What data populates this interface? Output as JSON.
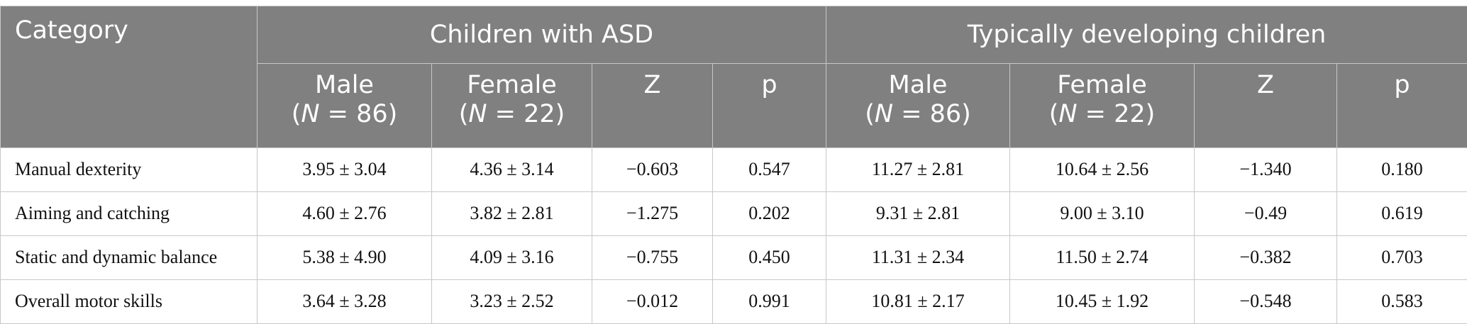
{
  "table": {
    "header": {
      "category": "Category",
      "group_asd": "Children with ASD",
      "group_td": "Typically developing children",
      "sub": [
        {
          "label": "Male",
          "n_prefix": "(",
          "n_var": "N",
          "n_suffix": " = 86)"
        },
        {
          "label": "Female",
          "n_prefix": "(",
          "n_var": "N",
          "n_suffix": " = 22)"
        },
        {
          "label": "Z"
        },
        {
          "label": "p"
        },
        {
          "label": "Male",
          "n_prefix": "(",
          "n_var": "N",
          "n_suffix": " = 86)"
        },
        {
          "label": "Female",
          "n_prefix": "(",
          "n_var": "N",
          "n_suffix": " = 22)"
        },
        {
          "label": "Z"
        },
        {
          "label": "p"
        }
      ]
    },
    "rows": [
      {
        "cells": [
          "Manual dexterity",
          "3.95 ± 3.04",
          "4.36 ± 3.14",
          "−0.603",
          "0.547",
          "11.27 ± 2.81",
          "10.64 ± 2.56",
          "−1.340",
          "0.180"
        ]
      },
      {
        "cells": [
          "Aiming and catching",
          "4.60 ± 2.76",
          "3.82 ± 2.81",
          "−1.275",
          "0.202",
          "9.31 ± 2.81",
          "9.00 ± 3.10",
          "−0.49",
          "0.619"
        ]
      },
      {
        "cells": [
          "Static and dynamic balance",
          "5.38 ± 4.90",
          "4.09 ± 3.16",
          "−0.755",
          "0.450",
          "11.31 ± 2.34",
          "11.50 ± 2.74",
          "−0.382",
          "0.703"
        ]
      },
      {
        "cells": [
          "Overall motor skills",
          "3.64 ± 3.28",
          "3.23 ± 2.52",
          "−0.012",
          "0.991",
          "10.81 ± 2.17",
          "10.45 ± 1.92",
          "−0.548",
          "0.583"
        ]
      }
    ]
  }
}
